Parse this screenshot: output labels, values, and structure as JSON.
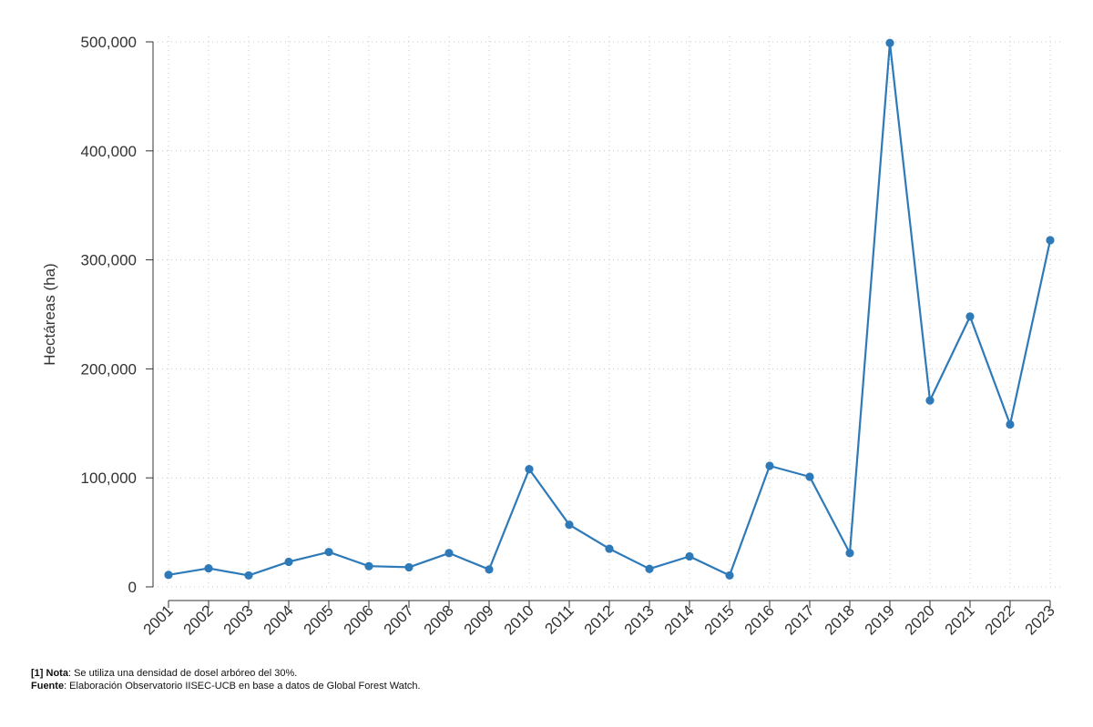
{
  "chart_data": {
    "type": "line",
    "title": "",
    "xlabel": "",
    "ylabel": "Hectáreas (ha)",
    "x": [
      "2001",
      "2002",
      "2003",
      "2004",
      "2005",
      "2006",
      "2007",
      "2008",
      "2009",
      "2010",
      "2011",
      "2012",
      "2013",
      "2014",
      "2015",
      "2016",
      "2017",
      "2018",
      "2019",
      "2020",
      "2021",
      "2022",
      "2023"
    ],
    "series": [
      {
        "name": "",
        "color": "#2e7ab8",
        "values": [
          11000,
          17000,
          10500,
          23000,
          32000,
          19000,
          18000,
          31000,
          16000,
          108000,
          57000,
          35000,
          16500,
          28000,
          10500,
          111000,
          101000,
          31000,
          499000,
          171000,
          248000,
          149000,
          318000
        ]
      }
    ],
    "ylim": [
      0,
      500000
    ],
    "yticks": [
      0,
      100000,
      200000,
      300000,
      400000,
      500000
    ],
    "ytick_labels": [
      "0",
      "100,000",
      "200,000",
      "300,000",
      "400,000",
      "500,000"
    ],
    "grid": true,
    "legend": "none"
  },
  "footnotes": {
    "note_label": "[1] Nota",
    "note_text": ": Se utiliza una densidad de dosel arbóreo del 30%.",
    "source_label": "Fuente",
    "source_text": ": Elaboración Observatorio IISEC-UCB en base a datos de Global Forest Watch."
  }
}
